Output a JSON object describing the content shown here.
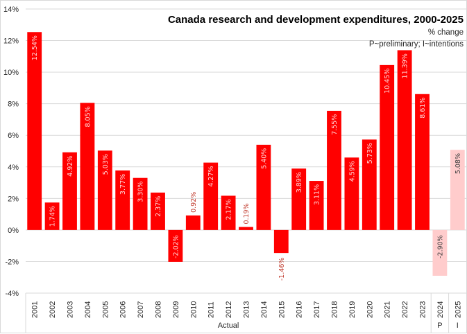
{
  "chart_data": {
    "type": "bar",
    "title": "Canada research and development expenditures,  2000-2025",
    "subtitle": "% change",
    "note": "P~preliminary; I~intentions",
    "xlabel": "",
    "ylabel": "",
    "ylim": [
      -4,
      14
    ],
    "y_ticks": [
      14,
      12,
      10,
      8,
      6,
      4,
      2,
      0,
      -2,
      -4
    ],
    "y_tick_labels": [
      "14%",
      "12%",
      "10%",
      "8%",
      "6%",
      "4%",
      "2%",
      "0%",
      "-2%",
      "-4%"
    ],
    "grid": true,
    "legend": "none",
    "categories": [
      "2001",
      "2002",
      "2003",
      "2004",
      "2005",
      "2006",
      "2007",
      "2008",
      "2009",
      "2010",
      "2011",
      "2012",
      "2013",
      "2014",
      "2015",
      "2016",
      "2017",
      "2018",
      "2019",
      "2020",
      "2021",
      "2022",
      "2023",
      "2024",
      "2025"
    ],
    "values": [
      12.54,
      1.74,
      4.92,
      8.05,
      5.03,
      3.77,
      3.3,
      2.37,
      -2.02,
      0.92,
      4.27,
      2.17,
      0.19,
      5.4,
      -1.46,
      3.89,
      3.11,
      7.55,
      4.59,
      5.73,
      10.45,
      11.39,
      8.61,
      -2.9,
      5.08
    ],
    "data_labels": [
      "12.54%",
      "1.74%",
      "4.92%",
      "8.05%",
      "5.03%",
      "3.77%",
      "3.30%",
      "2.37%",
      "-2.02%",
      "0.92%",
      "4.27%",
      "2.17%",
      "0.19%",
      "5.40%",
      "-1.46%",
      "3.89%",
      "3.11%",
      "7.55%",
      "4.59%",
      "5.73%",
      "10.45%",
      "11.39%",
      "8.61%",
      "-2.90%",
      "5.08%"
    ],
    "status": [
      "Actual",
      "Actual",
      "Actual",
      "Actual",
      "Actual",
      "Actual",
      "Actual",
      "Actual",
      "Actual",
      "Actual",
      "Actual",
      "Actual",
      "Actual",
      "Actual",
      "Actual",
      "Actual",
      "Actual",
      "Actual",
      "Actual",
      "Actual",
      "Actual",
      "Actual",
      "Actual",
      "P",
      "I"
    ],
    "groups": [
      {
        "label": "Actual",
        "from": 0,
        "to": 22
      },
      {
        "label": "P",
        "from": 23,
        "to": 23
      },
      {
        "label": "I",
        "from": 24,
        "to": 24
      }
    ],
    "colors": {
      "actual": "#ff0000",
      "projected": "#ffcccc",
      "label_inside_actual": "#ffd9d9",
      "label_outside_actual": "#c0392b",
      "label_projected": "#404040",
      "gridline": "#d9d9d9",
      "axis_text": "#262626"
    }
  }
}
